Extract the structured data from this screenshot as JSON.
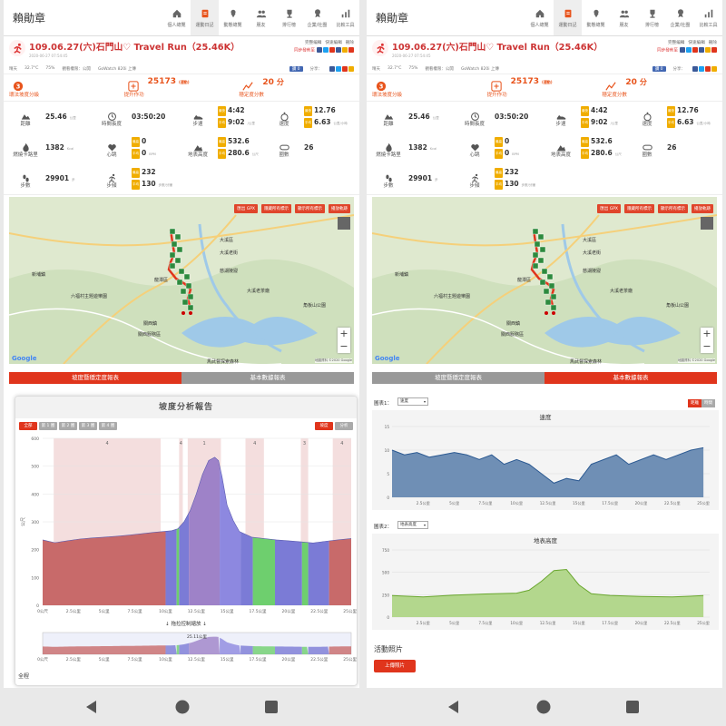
{
  "app": {
    "name": "賴勛章"
  },
  "nav_tabs": [
    {
      "label": "個人總覽",
      "icon": "home-icon"
    },
    {
      "label": "運動日記",
      "icon": "diary-icon",
      "active": true
    },
    {
      "label": "動態總覽",
      "icon": "pin-icon"
    },
    {
      "label": "朋友",
      "icon": "friends-icon"
    },
    {
      "label": "排行榜",
      "icon": "trophy-icon"
    },
    {
      "label": "企業/社團",
      "icon": "cup-icon"
    },
    {
      "label": "比較工具",
      "icon": "chart-icon"
    }
  ],
  "activity": {
    "title": "109.06.27(六)石門山♡ Travel Run（25.46K）",
    "date": "2020-06-27 07:54:45",
    "links": [
      "完整編輯",
      "快速編輯",
      "刪除"
    ],
    "sync_label": "同步發佈至"
  },
  "weather": {
    "condition": "晴天",
    "temp": "32.7°C",
    "humidity": "75%",
    "visibility": "觀看權限：公開",
    "device": "GoWatch 820i 上傳",
    "like": "讚 0",
    "share": "分享："
  },
  "summary": [
    {
      "value": "3",
      "label": "環法坡度分級",
      "icon": "grade-icon"
    },
    {
      "value": "25173",
      "unit": "(運動)",
      "label": "提升作功",
      "icon": "power-icon"
    },
    {
      "value": "20",
      "unit": "分",
      "label": "穩定度分數",
      "icon": "stability-icon"
    }
  ],
  "stats": [
    [
      {
        "name": "距離",
        "icon": "distance-icon",
        "lines": [
          {
            "v": "25.46",
            "u": "公里"
          }
        ]
      },
      {
        "name": "時間長度",
        "icon": "clock-icon",
        "lines": [
          {
            "v": "03:50:20",
            "u": ""
          }
        ]
      },
      {
        "name": "步速",
        "icon": "shoe-icon",
        "lines": [
          {
            "tag": "最快",
            "v": "4:42",
            "u": ""
          },
          {
            "tag": "平均",
            "v": "9:02",
            "u": "/公里"
          }
        ]
      },
      {
        "name": "速度",
        "icon": "timer-icon",
        "lines": [
          {
            "tag": "最快",
            "v": "12.76",
            "u": ""
          },
          {
            "tag": "平均",
            "v": "6.63",
            "u": "公里/小時"
          }
        ]
      }
    ],
    [
      {
        "name": "燃燒卡路里",
        "icon": "flame-icon",
        "lines": [
          {
            "v": "1382",
            "u": "Kcal"
          }
        ]
      },
      {
        "name": "心跳",
        "icon": "heart-icon",
        "lines": [
          {
            "tag": "最高",
            "v": "0",
            "u": ""
          },
          {
            "tag": "平均",
            "v": "0",
            "u": "BPM"
          }
        ]
      },
      {
        "name": "地表高度",
        "icon": "mountain-icon",
        "lines": [
          {
            "tag": "最高",
            "v": "532.6",
            "u": ""
          },
          {
            "tag": "平均",
            "v": "280.6",
            "u": "公尺"
          }
        ]
      },
      {
        "name": "圈數",
        "icon": "lap-icon",
        "lines": [
          {
            "v": "26",
            "u": ""
          }
        ]
      }
    ],
    [
      {
        "name": "步數",
        "icon": "steps-icon",
        "lines": [
          {
            "v": "29901",
            "u": "步"
          }
        ]
      },
      {
        "name": "步頻",
        "icon": "runner-icon",
        "lines": [
          {
            "tag": "最高",
            "v": "232",
            "u": ""
          },
          {
            "tag": "平均",
            "v": "130",
            "u": "步數/分鐘"
          }
        ]
      },
      {
        "name": "",
        "icon": "",
        "lines": []
      },
      {
        "name": "",
        "icon": "",
        "lines": []
      }
    ]
  ],
  "map": {
    "buttons": [
      "匯出 GPX",
      "隱藏所有標示",
      "顯示所有標示",
      "播放軌跡"
    ],
    "labels": [
      "大溪區",
      "大溪老街",
      "慈湖陵寢",
      "大溪老茶廠",
      "新埔鎮",
      "龍潭區",
      "角板山公園",
      "關西鎮",
      "六福村主題遊樂園",
      "關西服務區",
      "馬武督探索森林"
    ],
    "attribution": "地圖資料 ©2020 Google",
    "google": "Google",
    "zoom_in": "+",
    "zoom_out": "−"
  },
  "report_tabs": [
    "坡度暨穩定度報表",
    "基本數據報表"
  ],
  "left_tab_active": 0,
  "right_tab_active": 1,
  "slope_report": {
    "title": "坡度分析報告",
    "chips": [
      "全部",
      "第 1 圈",
      "第 2 圈",
      "第 3 圈",
      "第 4 圈"
    ],
    "view_chips": [
      "坡度",
      "分析"
    ],
    "drag_hint": "↓ 拖拉控制縮放 ↓",
    "range_label": "25.11公里",
    "full": "全程",
    "yaxis_label": "公尺",
    "yticks": [
      "0",
      "100",
      "200",
      "300",
      "400",
      "500",
      "600"
    ],
    "xticks": [
      "0公尺",
      "2.5公里",
      "5公里",
      "7.5公里",
      "10公里",
      "12.5公里",
      "15公里",
      "17.5公里",
      "20公里",
      "22.5公里",
      "25公里"
    ],
    "grade_labels": [
      "4",
      "4",
      "1",
      "4",
      "3",
      "4"
    ]
  },
  "basic_report": {
    "chart1_label": "圖表1：",
    "chart1_select": "速度",
    "chart1_title": "速度",
    "chart1_yticks": [
      "0",
      "5",
      "10",
      "15"
    ],
    "seg_buttons": [
      "距離",
      "時間"
    ],
    "chart2_label": "圖表2：",
    "chart2_select": "地表高度",
    "chart2_title": "地表高度",
    "chart2_yticks": [
      "0",
      "250",
      "500",
      "750"
    ],
    "xticks": [
      "2.5公里",
      "5公里",
      "7.5公里",
      "10公里",
      "12.5公里",
      "15公里",
      "17.5公里",
      "20公里",
      "22.5公里",
      "25公里"
    ],
    "photos_title": "活動照片",
    "upload": "上傳照片"
  },
  "chart_data": [
    {
      "type": "area",
      "title": "坡度分析報告",
      "xlabel": "",
      "ylabel": "公尺",
      "x_unit": "公里",
      "ylim": [
        0,
        600
      ],
      "x": [
        0,
        1,
        2,
        3,
        4,
        5,
        6,
        7,
        8,
        9,
        10,
        10.5,
        11,
        11.5,
        12,
        12.5,
        13,
        13.5,
        14,
        14.3,
        14.6,
        15,
        15.5,
        16,
        17,
        18,
        19,
        20,
        21,
        22,
        23,
        24,
        25.1
      ],
      "elevation": [
        235,
        225,
        232,
        238,
        242,
        245,
        248,
        252,
        257,
        262,
        266,
        268,
        275,
        300,
        340,
        400,
        470,
        520,
        532,
        520,
        460,
        360,
        305,
        265,
        245,
        240,
        235,
        232,
        228,
        224,
        230,
        235,
        240
      ]
    },
    {
      "type": "line",
      "title": "速度",
      "ylim": [
        0,
        15
      ],
      "x_unit": "公里",
      "series": [
        {
          "name": "速度",
          "x": [
            0,
            1,
            2,
            3,
            4,
            5,
            6,
            7,
            8,
            9,
            10,
            11,
            12,
            13,
            14,
            15,
            16,
            17,
            18,
            19,
            20,
            21,
            22,
            23,
            24,
            25
          ],
          "values": [
            10,
            9,
            9.5,
            8.5,
            9,
            9.5,
            9,
            8,
            9,
            7,
            8,
            7,
            5,
            3,
            4,
            3.5,
            7,
            8,
            9,
            7,
            8,
            9,
            8,
            9,
            10,
            10.5
          ]
        }
      ]
    },
    {
      "type": "area",
      "title": "地表高度",
      "ylim": [
        0,
        750
      ],
      "x_unit": "公里",
      "series": [
        {
          "name": "地表高度",
          "x": [
            0,
            2.5,
            5,
            7.5,
            10,
            11,
            12,
            13,
            14,
            15,
            16,
            17.5,
            20,
            22.5,
            25
          ],
          "values": [
            240,
            225,
            245,
            258,
            268,
            300,
            400,
            520,
            532,
            360,
            260,
            242,
            230,
            225,
            240
          ]
        }
      ]
    }
  ]
}
